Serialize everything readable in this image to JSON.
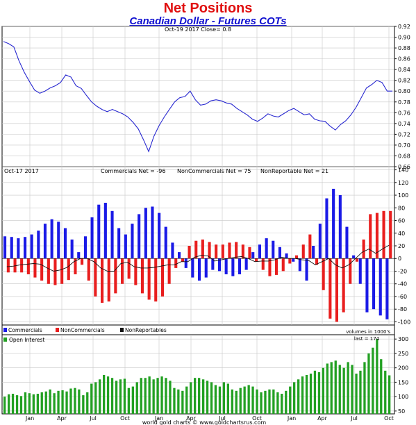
{
  "header": {
    "title": "Net Positions",
    "subtitle": "Canadian Dollar - Futures COTs"
  },
  "footer": {
    "credit": "world gold charts © www.goldchartsrus.com"
  },
  "colors": {
    "price": "#2828d0",
    "commercials": "#1a1ae6",
    "noncommercials": "#e81e1e",
    "nonreportables": "#111111",
    "open_interest": "#22a022"
  },
  "chart_data": [
    {
      "type": "line",
      "panel": "price",
      "annotation": "Oct-19  2017    Close= 0.8",
      "x_ticks": [
        "Jan",
        "Apr",
        "Jul",
        "Oct",
        "Jan",
        "Apr",
        "Jul",
        "Oct",
        "Jan",
        "Apr",
        "Jul",
        "Oct"
      ],
      "y_ticks": [
        "0.66",
        "0.68",
        "0.70",
        "0.72",
        "0.74",
        "0.76",
        "0.78",
        "0.80",
        "0.82",
        "0.84",
        "0.86",
        "0.88",
        "0.90",
        "0.92"
      ],
      "ylim": [
        0.66,
        0.92
      ],
      "grid": true,
      "series": [
        {
          "values": [
            0.892,
            0.888,
            0.882,
            0.856,
            0.835,
            0.818,
            0.802,
            0.796,
            0.8,
            0.806,
            0.81,
            0.816,
            0.83,
            0.826,
            0.81,
            0.805,
            0.792,
            0.78,
            0.772,
            0.766,
            0.762,
            0.766,
            0.762,
            0.758,
            0.752,
            0.742,
            0.73,
            0.71,
            0.688,
            0.716,
            0.736,
            0.752,
            0.766,
            0.78,
            0.788,
            0.79,
            0.8,
            0.784,
            0.774,
            0.776,
            0.782,
            0.784,
            0.782,
            0.778,
            0.776,
            0.768,
            0.762,
            0.756,
            0.748,
            0.744,
            0.75,
            0.758,
            0.754,
            0.752,
            0.758,
            0.764,
            0.768,
            0.762,
            0.756,
            0.758,
            0.748,
            0.745,
            0.744,
            0.735,
            0.728,
            0.738,
            0.745,
            0.756,
            0.77,
            0.788,
            0.806,
            0.812,
            0.82,
            0.816,
            0.8,
            0.8
          ]
        }
      ]
    },
    {
      "type": "bar",
      "panel": "net_positions",
      "annotations": [
        "Oct-17  2017",
        "Commercials Net = -96",
        "NonCommercials Net = 75",
        "NonReportable Net = 21"
      ],
      "y_ticks": [
        "-100",
        "-80",
        "-60",
        "-40",
        "-20",
        "0",
        "20",
        "40",
        "60",
        "80",
        "100",
        "120",
        "140"
      ],
      "ylim": [
        -105,
        145
      ],
      "grid": true,
      "series": [
        {
          "name": "Commercials",
          "values": [
            35,
            34,
            32,
            34,
            38,
            44,
            55,
            62,
            58,
            48,
            30,
            10,
            35,
            65,
            85,
            88,
            75,
            48,
            38,
            55,
            70,
            80,
            82,
            72,
            50,
            25,
            10,
            -15,
            -30,
            -35,
            -30,
            -18,
            -20,
            -25,
            -28,
            -25,
            -18,
            10,
            22,
            32,
            28,
            18,
            8,
            -5,
            -20,
            -35,
            20,
            55,
            95,
            110,
            100,
            50,
            5,
            -40,
            -85,
            -80,
            -90,
            -96
          ]
        },
        {
          "name": "NonCommercials",
          "values": [
            -22,
            -22,
            -22,
            -25,
            -30,
            -35,
            -40,
            -42,
            -40,
            -34,
            -25,
            -10,
            -35,
            -60,
            -70,
            -68,
            -55,
            -40,
            -32,
            -42,
            -55,
            -65,
            -68,
            -60,
            -40,
            -15,
            -5,
            20,
            28,
            30,
            26,
            22,
            22,
            25,
            26,
            22,
            18,
            -5,
            -18,
            -28,
            -26,
            -20,
            -8,
            5,
            22,
            38,
            -10,
            -50,
            -95,
            -100,
            -85,
            -40,
            -5,
            30,
            70,
            72,
            75,
            75
          ]
        },
        {
          "name": "NonReportables",
          "values": [
            -13,
            -12,
            -10,
            -9,
            -8,
            -9,
            -15,
            -20,
            -18,
            -14,
            -5,
            0,
            0,
            -5,
            -15,
            -20,
            -20,
            -8,
            -6,
            -13,
            -15,
            -15,
            -14,
            -12,
            -10,
            -10,
            -5,
            -5,
            2,
            5,
            4,
            -4,
            -2,
            0,
            2,
            3,
            0,
            -5,
            -4,
            -4,
            -2,
            2,
            0,
            0,
            -2,
            -3,
            -10,
            -5,
            0,
            -10,
            -15,
            -10,
            0,
            10,
            15,
            8,
            15,
            21
          ]
        }
      ]
    },
    {
      "type": "bar",
      "panel": "open_interest",
      "annotations": [
        "volumes in 1000's",
        "last = 174"
      ],
      "y_ticks": [
        "50",
        "100",
        "150",
        "200",
        "250",
        "300"
      ],
      "ylim": [
        40,
        315
      ],
      "x_ticks": [
        "Jan",
        "Apr",
        "Jul",
        "Oct",
        "Jan",
        "Apr",
        "Jul",
        "Oct",
        "Jan",
        "Apr",
        "Jul",
        "Oct"
      ],
      "grid": true,
      "series": [
        {
          "name": "Open Interest",
          "values": [
            100,
            108,
            110,
            105,
            102,
            115,
            112,
            108,
            110,
            115,
            118,
            125,
            112,
            120,
            122,
            118,
            128,
            130,
            125,
            105,
            115,
            145,
            150,
            160,
            175,
            170,
            165,
            155,
            160,
            162,
            130,
            135,
            150,
            165,
            165,
            170,
            160,
            165,
            170,
            165,
            155,
            130,
            125,
            120,
            135,
            150,
            165,
            165,
            160,
            155,
            150,
            140,
            135,
            150,
            145,
            125,
            120,
            130,
            135,
            140,
            135,
            125,
            115,
            120,
            125,
            125,
            115,
            110,
            120,
            135,
            150,
            160,
            170,
            175,
            180,
            190,
            185,
            200,
            215,
            220,
            225,
            210,
            200,
            220,
            210,
            180,
            190,
            220,
            250,
            270,
            300,
            230,
            190,
            174
          ]
        }
      ]
    }
  ],
  "legend": {
    "commercials": "Commercials",
    "noncommercials": "NonCommercials",
    "nonreportables": "NonReportables",
    "open_interest": "Open Interest"
  }
}
